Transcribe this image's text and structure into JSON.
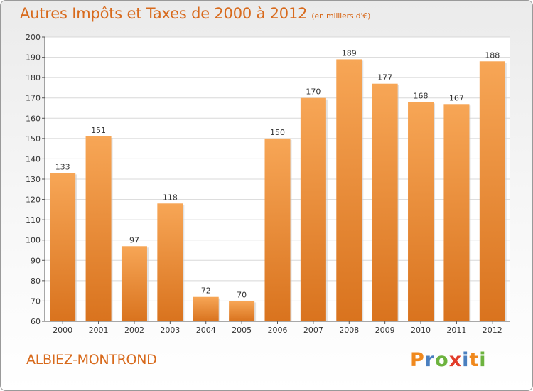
{
  "header": {
    "title": "Autres Impôts et Taxes de 2000 à 2012",
    "unit": "(en milliers d'€)"
  },
  "footer": {
    "commune": "ALBIEZ-MONTROND",
    "logo_letters": [
      "P",
      "r",
      "o",
      "x",
      "i",
      "t",
      "i"
    ]
  },
  "colors": {
    "bar_light": "#f7a656",
    "bar_dark": "#d9731e",
    "title": "#d86a1c",
    "grid": "#d8d8d8",
    "logo": [
      "#f0891e",
      "#4a7fbf",
      "#6db33f",
      "#e23c2a",
      "#4a7fbf",
      "#f0891e",
      "#6db33f"
    ]
  },
  "chart_data": {
    "type": "bar",
    "categories": [
      "2000",
      "2001",
      "2002",
      "2003",
      "2004",
      "2005",
      "2006",
      "2007",
      "2008",
      "2009",
      "2010",
      "2011",
      "2012"
    ],
    "values": [
      133,
      151,
      97,
      118,
      72,
      70,
      150,
      170,
      189,
      177,
      168,
      167,
      188
    ],
    "ylim": [
      60,
      200
    ],
    "yticks": [
      60,
      70,
      80,
      90,
      100,
      110,
      120,
      130,
      140,
      150,
      160,
      170,
      180,
      190,
      200
    ],
    "grid": true
  }
}
